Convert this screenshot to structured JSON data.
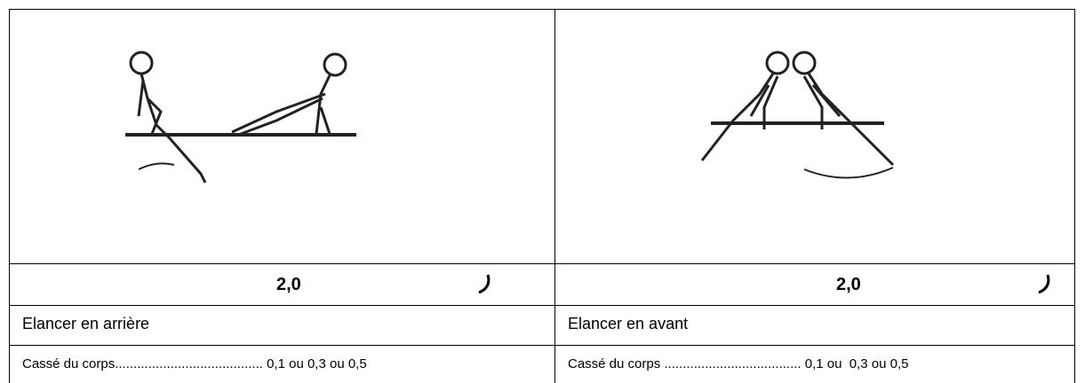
{
  "table": {
    "columns": [
      {
        "value": "2,0",
        "name": "Elancer en arrière",
        "deduction": "Cassé du corps........................................ 0,1 ou 0,3 ou 0,5"
      },
      {
        "value": "2,0",
        "name": "Elancer en avant",
        "deduction": "Cassé du corps ..................................... 0,1 ou  0,3 ou 0,5"
      }
    ]
  }
}
